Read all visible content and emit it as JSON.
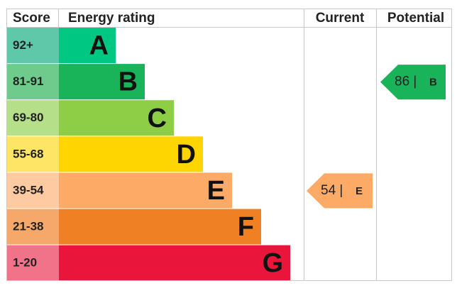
{
  "chart_data": {
    "type": "epc",
    "headers": {
      "score": "Score",
      "rating": "Energy rating",
      "current": "Current",
      "potential": "Potential"
    },
    "bands": [
      {
        "score": "92+",
        "rating": "A",
        "color": "#00c781",
        "score_color": "#5fc8a8"
      },
      {
        "score": "81-91",
        "rating": "B",
        "color": "#19b459",
        "score_color": "#6ecb8c"
      },
      {
        "score": "69-80",
        "rating": "C",
        "color": "#8dce46",
        "score_color": "#b5df88"
      },
      {
        "score": "55-68",
        "rating": "D",
        "color": "#ffd500",
        "score_color": "#ffe566"
      },
      {
        "score": "39-54",
        "rating": "E",
        "color": "#fcaa65",
        "score_color": "#fdcaa2"
      },
      {
        "score": "21-38",
        "rating": "F",
        "color": "#ef8023",
        "score_color": "#f5a86a"
      },
      {
        "score": "1-20",
        "rating": "G",
        "color": "#e9153b",
        "score_color": "#f07389"
      }
    ],
    "current": {
      "value": 54,
      "label": "54 |",
      "rating": "E"
    },
    "potential": {
      "value": 86,
      "label": "86 |",
      "rating": "B"
    }
  }
}
